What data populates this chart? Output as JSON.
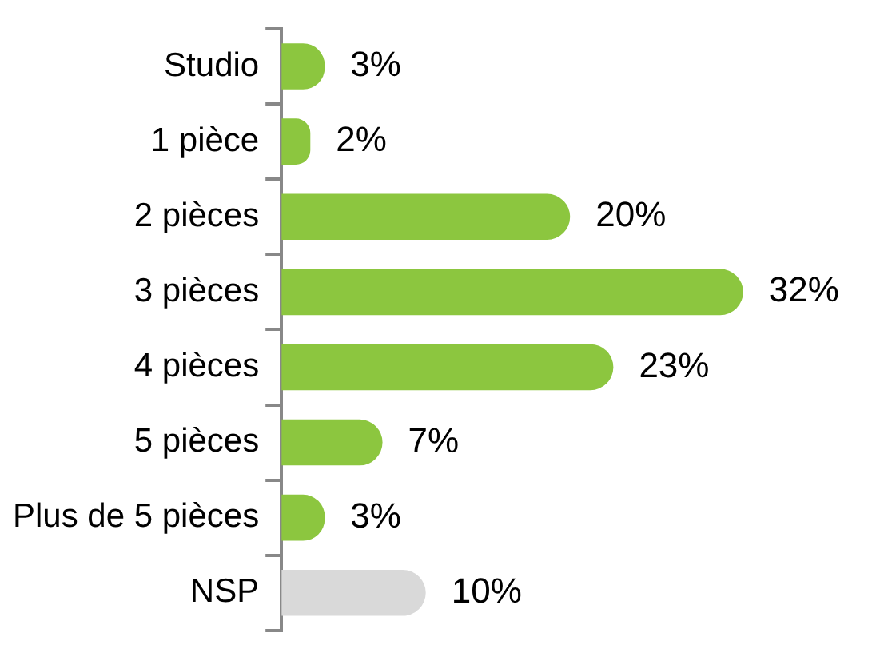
{
  "chart_data": {
    "type": "bar",
    "orientation": "horizontal",
    "categories": [
      "Studio",
      "1 pièce",
      "2 pièces",
      "3 pièces",
      "4 pièces",
      "5 pièces",
      "Plus de 5 pièces",
      "NSP"
    ],
    "values": [
      3,
      2,
      20,
      32,
      23,
      7,
      3,
      10
    ],
    "colors": [
      "#8cc63f",
      "#8cc63f",
      "#8cc63f",
      "#8cc63f",
      "#8cc63f",
      "#8cc63f",
      "#8cc63f",
      "#d9d9d9"
    ],
    "value_labels": [
      "3%",
      "2%",
      "20%",
      "32%",
      "23%",
      "7%",
      "3%",
      "10%"
    ],
    "legend": false
  }
}
